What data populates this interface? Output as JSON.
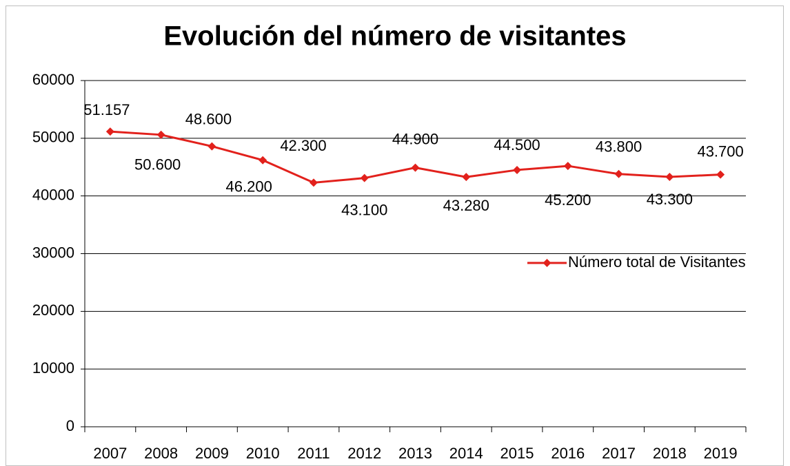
{
  "chart_data": {
    "type": "line",
    "title": "Evolución del número de visitantes",
    "categories": [
      "2007",
      "2008",
      "2009",
      "2010",
      "2011",
      "2012",
      "2013",
      "2014",
      "2015",
      "2016",
      "2017",
      "2018",
      "2019"
    ],
    "series": [
      {
        "name": "Número total de Visitantes",
        "color": "#e2211c",
        "values": [
          51157,
          50600,
          48600,
          46200,
          42300,
          43100,
          44900,
          43280,
          44500,
          45200,
          43800,
          43300,
          43700
        ],
        "value_labels": [
          "51.157",
          "50.600",
          "48.600",
          "46.200",
          "42.300",
          "43.100",
          "44.900",
          "43.280",
          "44.500",
          "45.200",
          "43.800",
          "43.300",
          "43.700"
        ]
      }
    ],
    "ylim": [
      0,
      60000
    ],
    "yticks": [
      0,
      10000,
      20000,
      30000,
      40000,
      50000,
      60000
    ],
    "grid": true,
    "legend": "right"
  }
}
